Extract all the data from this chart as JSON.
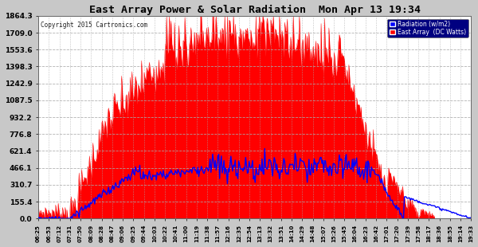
{
  "title": "East Array Power & Solar Radiation  Mon Apr 13 19:34",
  "copyright": "Copyright 2015 Cartronics.com",
  "legend_radiation": "Radiation (w/m2)",
  "legend_east": "East Array  (DC Watts)",
  "ylabel_ticks": [
    0.0,
    155.4,
    310.7,
    466.1,
    621.4,
    776.8,
    932.2,
    1087.5,
    1242.9,
    1398.3,
    1553.6,
    1709.0,
    1864.3
  ],
  "ymax": 1864.3,
  "ymin": 0.0,
  "bg_color": "#c8c8c8",
  "plot_bg_color": "#ffffff",
  "grid_color": "#aaaaaa",
  "red_color": "#ff0000",
  "blue_color": "#0000ff",
  "title_color": "#000000",
  "x_tick_labels": [
    "06:25",
    "06:53",
    "07:12",
    "07:31",
    "07:50",
    "08:09",
    "08:28",
    "08:47",
    "09:06",
    "09:25",
    "09:44",
    "10:03",
    "10:22",
    "10:41",
    "11:00",
    "11:19",
    "11:38",
    "11:57",
    "12:16",
    "12:35",
    "12:54",
    "13:13",
    "13:32",
    "13:51",
    "14:10",
    "14:29",
    "14:48",
    "15:07",
    "15:26",
    "15:45",
    "16:04",
    "16:23",
    "16:42",
    "17:01",
    "17:20",
    "17:39",
    "17:58",
    "18:17",
    "18:36",
    "18:55",
    "19:14",
    "19:33"
  ],
  "n_points": 500
}
